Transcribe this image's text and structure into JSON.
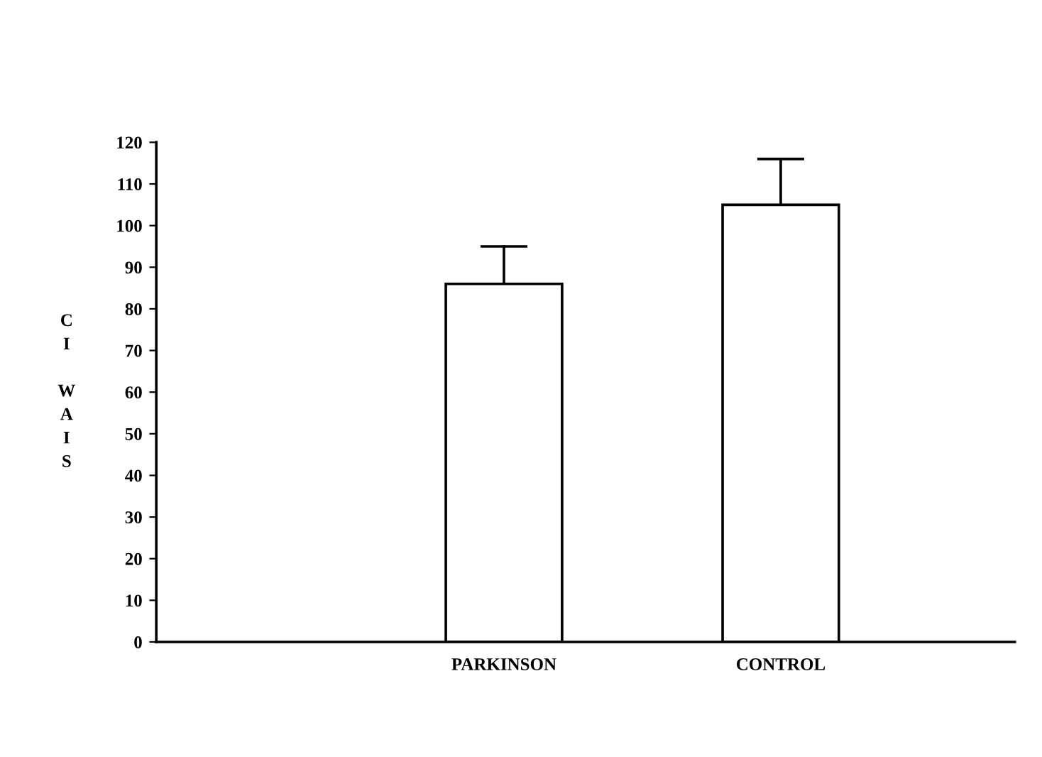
{
  "chart_data": {
    "type": "bar",
    "ylabel": "CI WAIS",
    "categories": [
      "PARKINSON",
      "CONTROL"
    ],
    "values": [
      86,
      105
    ],
    "errors": [
      9,
      11
    ],
    "color": "#ffffff",
    "ylim": [
      0,
      120
    ],
    "yticks": [
      0,
      10,
      20,
      30,
      40,
      50,
      60,
      70,
      80,
      90,
      100,
      110,
      120
    ],
    "grid": false,
    "legend": false
  }
}
